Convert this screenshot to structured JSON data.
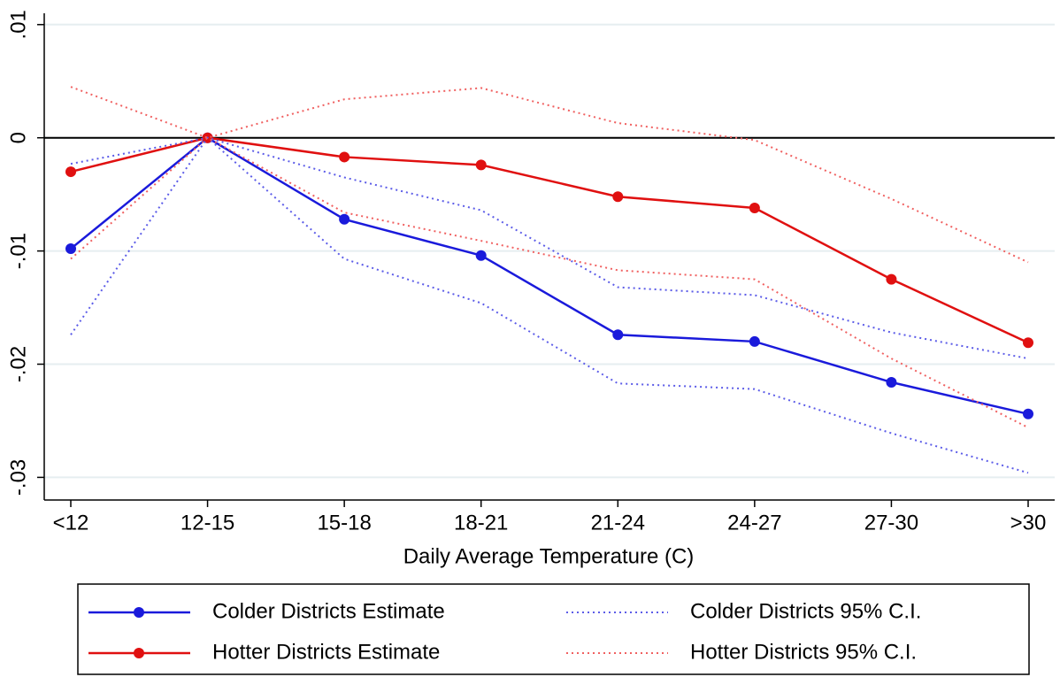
{
  "chart_data": {
    "type": "line",
    "x_label": "Daily Average Temperature (C)",
    "categories": [
      "<12",
      "12-15",
      "15-18",
      "18-21",
      "21-24",
      "24-27",
      "27-30",
      ">30"
    ],
    "ylim": [
      -0.032,
      0.011
    ],
    "yticks": [
      {
        "value": 0.01,
        "label": ".01"
      },
      0,
      {
        "value": -0.01,
        "label": "-.01"
      },
      {
        "value": -0.02,
        "label": "-.02"
      },
      {
        "value": -0.03,
        "label": "-.03"
      }
    ],
    "grid": true,
    "zero_line": true,
    "legend_position": "bottom",
    "series": [
      {
        "name": "Colder Districts Estimate",
        "color": "#1a1adb",
        "line": "solid",
        "markers": true,
        "values": [
          -0.0098,
          0,
          -0.0072,
          -0.0104,
          -0.0174,
          -0.018,
          -0.0216,
          -0.0244
        ]
      },
      {
        "name": "Hotter Districts Estimate",
        "color": "#e01010",
        "line": "solid",
        "markers": true,
        "values": [
          -0.003,
          0,
          -0.0017,
          -0.0024,
          -0.0052,
          -0.0062,
          -0.0125,
          -0.0181
        ]
      },
      {
        "name": "Colder Districts 95% C.I.",
        "color": "#5c5ce8",
        "line": "dotted",
        "markers": false,
        "upper": [
          -0.0023,
          0,
          -0.0035,
          -0.0064,
          -0.0132,
          -0.0139,
          -0.0172,
          -0.0195
        ],
        "lower": [
          -0.0174,
          0,
          -0.0107,
          -0.0146,
          -0.0217,
          -0.0222,
          -0.0261,
          -0.0296
        ]
      },
      {
        "name": "Hotter Districts 95% C.I.",
        "color": "#f06060",
        "line": "dotted",
        "markers": false,
        "upper": [
          0.0045,
          0,
          0.0034,
          0.0044,
          0.0013,
          -0.0002,
          -0.0054,
          -0.011
        ],
        "lower": [
          -0.0107,
          0,
          -0.0066,
          -0.0091,
          -0.0117,
          -0.0125,
          -0.0195,
          -0.0256
        ]
      }
    ]
  }
}
